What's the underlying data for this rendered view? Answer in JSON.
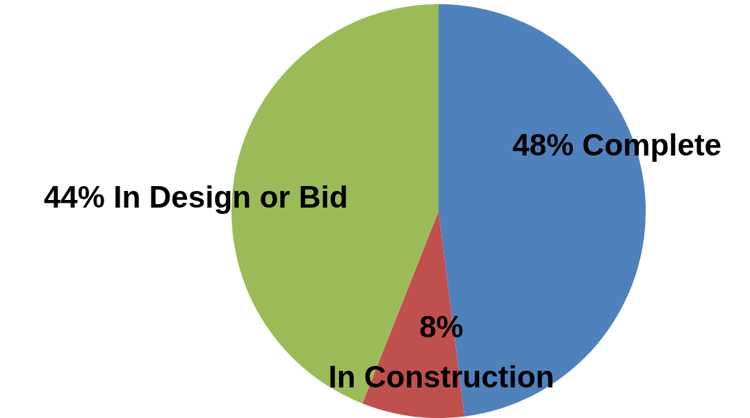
{
  "chart_data": {
    "type": "pie",
    "categories": [
      "Complete",
      "In Construction",
      "In Design or Bid"
    ],
    "values": [
      48,
      8,
      44
    ],
    "value_labels": [
      "48%",
      "8%",
      "44%"
    ],
    "colors": [
      "#4f81bd",
      "#c0504d",
      "#9bbb59"
    ],
    "legend": false
  }
}
